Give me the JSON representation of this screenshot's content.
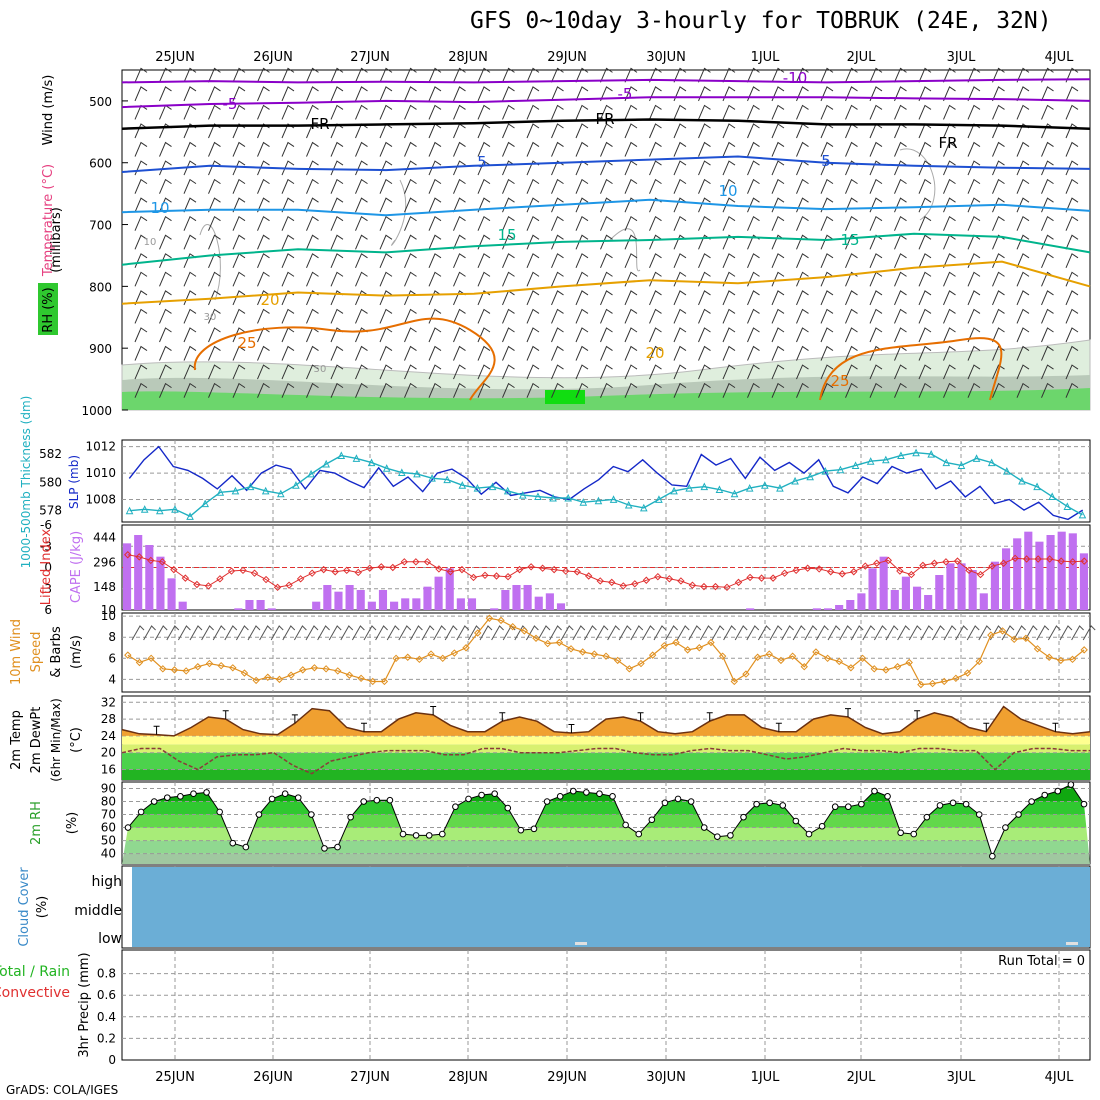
{
  "title": "GFS 0~10day 3-hourly for TOBRUK (24E, 32N)",
  "footer": "GrADS: COLA/IGES",
  "run_total": "Run Total = 0",
  "colors": {
    "purple": "#8a00c8",
    "black": "#000000",
    "blue": "#1e50d2",
    "lightblue": "#1e96e6",
    "teal": "#00b48c",
    "orange": "#e6a000",
    "darkorange": "#e66e00",
    "rh_green": "#3cc83c",
    "cyan": "#20b0c0",
    "slp_blue": "#1428c8",
    "cape": "#c070f0",
    "li": "#e03030",
    "wind10": "#e09020",
    "cloud": "#6baed6",
    "temp_fill": "#f0a030",
    "temp_top": "#e06000"
  },
  "chart_data": [
    {
      "type": "contour",
      "panel": "upper-air",
      "dates": [
        "25JUN",
        "26JUN",
        "27JUN",
        "28JUN",
        "29JUN",
        "30JUN",
        "1JUL",
        "2JUL",
        "3JUL",
        "4JUL"
      ],
      "ylabel": "(millibars)",
      "side_labels": [
        "Wind (m/s)",
        "Temperature (°C)",
        "RH (%)"
      ],
      "y_ticks": [
        "500",
        "600",
        "700",
        "800",
        "900",
        "1000"
      ],
      "ylim": [
        1000,
        450
      ],
      "temperature_lines": [
        {
          "name": "-10",
          "color": "purple",
          "p": [
            470,
            468,
            470,
            469,
            470,
            468,
            466,
            468,
            470,
            468,
            466,
            465
          ]
        },
        {
          "name": "-5",
          "color": "purple",
          "p": [
            510,
            505,
            503,
            500,
            502,
            498,
            494,
            494,
            494,
            496,
            497,
            500
          ]
        },
        {
          "name": "FR",
          "color": "black",
          "p": [
            545,
            540,
            540,
            538,
            536,
            532,
            530,
            532,
            538,
            538,
            540,
            545
          ]
        },
        {
          "name": "5",
          "color": "blue",
          "p": [
            615,
            605,
            610,
            612,
            605,
            600,
            595,
            590,
            600,
            605,
            608,
            610
          ]
        },
        {
          "name": "10",
          "color": "lightblue",
          "p": [
            680,
            676,
            676,
            685,
            676,
            668,
            660,
            670,
            675,
            672,
            668,
            678
          ]
        },
        {
          "name": "15",
          "color": "teal",
          "p": [
            765,
            750,
            740,
            745,
            735,
            728,
            725,
            720,
            725,
            715,
            720,
            745
          ]
        },
        {
          "name": "20",
          "color": "orange",
          "p": [
            828,
            820,
            810,
            815,
            812,
            800,
            790,
            795,
            785,
            770,
            760,
            800
          ]
        }
      ],
      "labels": [
        {
          "text": "-5",
          "value": -5
        },
        {
          "text": "-5",
          "value": -5
        },
        {
          "text": "-10",
          "value": -10
        },
        {
          "text": "FR",
          "value": 0
        },
        {
          "text": "FR",
          "value": 0
        },
        {
          "text": "FR",
          "value": 0
        },
        {
          "text": "5",
          "value": 5
        },
        {
          "text": "5",
          "value": 5
        },
        {
          "text": "10",
          "value": 10
        },
        {
          "text": "10",
          "value": 10
        },
        {
          "text": "15",
          "value": 15
        },
        {
          "text": "15",
          "value": 15
        },
        {
          "text": "20",
          "value": 20
        },
        {
          "text": "20",
          "value": 20
        },
        {
          "text": "25",
          "value": 25
        },
        {
          "text": "25",
          "value": 25
        },
        {
          "text": "10",
          "value": 10
        },
        {
          "text": "30",
          "value": 30
        },
        {
          "text": "50",
          "value": 50
        }
      ]
    },
    {
      "type": "line",
      "panel": "slp-thickness",
      "left_axis_label": "1000-500mb Thickness (dm)",
      "right_axis_label": "SLP (mb)",
      "left_ticks": [
        "582",
        "580",
        "578"
      ],
      "right_ticks": [
        "1012",
        "1010",
        "1008"
      ],
      "series": [
        {
          "name": "SLP (mb)",
          "color": "slp_blue",
          "marker": "none",
          "values": [
            1009.6,
            1011.0,
            1012.0,
            1010.5,
            1010.2,
            1009.6,
            1008.8,
            1009.8,
            1008.7,
            1010.0,
            1010.6,
            1010.3,
            1008.8,
            1010.2,
            1010.0,
            1009.4,
            1008.9,
            1010.4,
            1009.0,
            1009.7,
            1008.6,
            1010.0,
            1010.3,
            1009.6,
            1008.4,
            1009.3,
            1008.3,
            1008.5,
            1008.7,
            1008.2,
            1008.0,
            1008.8,
            1009.5,
            1010.5,
            1010.1,
            1011.0,
            1010.0,
            1009.1,
            1009.0,
            1011.4,
            1010.6,
            1011.1,
            1009.6,
            1011.2,
            1010.2,
            1010.8,
            1010.0,
            1011.0,
            1009.0,
            1008.5,
            1009.7,
            1009.2,
            1010.5,
            1010.0,
            1010.3,
            1008.8,
            1009.4,
            1008.2,
            1009.0,
            1007.7,
            1008.0,
            1007.2,
            1007.8,
            1006.8,
            1006.5,
            1007.2
          ]
        },
        {
          "name": "1000-500mb Thickness (dm)",
          "color": "cyan",
          "marker": "triangle",
          "values": [
            578.0,
            578.1,
            578.0,
            578.1,
            577.6,
            578.5,
            579.3,
            579.4,
            579.7,
            579.4,
            579.2,
            579.8,
            580.6,
            581.3,
            581.9,
            581.7,
            581.4,
            581.0,
            580.7,
            580.6,
            580.3,
            580.2,
            579.8,
            579.6,
            579.7,
            579.4,
            579.1,
            579.0,
            578.9,
            578.9,
            578.6,
            578.7,
            578.8,
            578.4,
            578.2,
            578.8,
            579.4,
            579.6,
            579.7,
            579.5,
            579.2,
            579.6,
            579.8,
            579.6,
            580.1,
            580.4,
            580.8,
            580.9,
            581.2,
            581.5,
            581.6,
            581.9,
            582.1,
            582.0,
            581.4,
            581.2,
            581.7,
            581.4,
            580.8,
            580.1,
            579.7,
            579.0,
            578.3,
            577.7
          ]
        }
      ]
    },
    {
      "type": "bar",
      "panel": "cape-li",
      "left_axis_label": "Lifted Index",
      "right_axis_label": "CAPE (J/kg)",
      "left_ticks": [
        "-6",
        "-3",
        "0",
        "3",
        "6"
      ],
      "right_ticks": [
        "444",
        "296",
        "148",
        "10"
      ],
      "series": [
        {
          "name": "CAPE (J/kg)",
          "color": "cape",
          "values": [
            410,
            460,
            400,
            330,
            200,
            60,
            0,
            0,
            0,
            0,
            20,
            70,
            70,
            20,
            0,
            0,
            0,
            60,
            160,
            120,
            160,
            130,
            60,
            130,
            60,
            80,
            80,
            150,
            210,
            260,
            80,
            80,
            0,
            20,
            130,
            160,
            160,
            90,
            110,
            50,
            0,
            0,
            0,
            0,
            0,
            0,
            0,
            0,
            0,
            0,
            0,
            0,
            0,
            0,
            0,
            0,
            20,
            0,
            0,
            0,
            0,
            0,
            20,
            20,
            40,
            70,
            110,
            260,
            330,
            130,
            210,
            150,
            100,
            220,
            290,
            290,
            250,
            110,
            300,
            380,
            440,
            480,
            420,
            460,
            480,
            470,
            350
          ]
        },
        {
          "name": "Lifted Index",
          "color": "li",
          "marker": "diamond",
          "values": [
            -1.8,
            -1.5,
            -1.0,
            -0.8,
            0.3,
            1.5,
            2.4,
            2.6,
            1.6,
            0.5,
            0.4,
            0.8,
            1.7,
            2.8,
            2.5,
            1.6,
            0.8,
            0.3,
            0.6,
            0.4,
            0.7,
            0.1,
            -0.1,
            0.0,
            -0.8,
            -0.8,
            -0.8,
            0.2,
            0.6,
            0.3,
            1.4,
            1.1,
            1.2,
            1.3,
            0.3,
            -0.1,
            0.1,
            0.3,
            0.5,
            0.6,
            1.2,
            1.9,
            2.1,
            2.6,
            2.3,
            1.8,
            1.3,
            1.6,
            1.9,
            2.5,
            2.7,
            2.7,
            2.8,
            2.1,
            1.4,
            1.5,
            1.5,
            0.8,
            0.4,
            0.1,
            0.2,
            0.6,
            0.9,
            0.6,
            -0.2,
            -0.6,
            -1.0,
            0.5,
            1.0,
            -0.3,
            -0.6,
            -0.8,
            -0.9,
            0.4,
            1.0,
            -0.2,
            -0.6,
            -1.3,
            -1.2,
            -1.2,
            -1.2,
            -0.9,
            -0.8,
            -0.9
          ]
        }
      ]
    },
    {
      "type": "line",
      "panel": "wind10m",
      "left_axis_label": "10m Wind Speed & Barbs (m/s)",
      "left_ticks": [
        "10",
        "8",
        "6",
        "4"
      ],
      "series": [
        {
          "name": "10m Wind Speed",
          "color": "wind10",
          "marker": "diamond",
          "values": [
            6.3,
            5.6,
            6.0,
            5.0,
            4.9,
            4.8,
            5.2,
            5.5,
            5.3,
            5.1,
            4.6,
            3.9,
            4.2,
            4.0,
            4.4,
            4.9,
            5.1,
            5.0,
            4.8,
            4.4,
            4.1,
            3.8,
            3.8,
            6.0,
            6.1,
            5.9,
            6.4,
            6.0,
            6.5,
            7.0,
            8.4,
            9.8,
            9.6,
            9.0,
            8.6,
            7.9,
            7.4,
            7.5,
            6.9,
            6.6,
            6.4,
            6.2,
            5.8,
            5.0,
            5.5,
            6.3,
            7.2,
            7.5,
            6.8,
            7.0,
            7.5,
            6.2,
            3.8,
            4.5,
            6.1,
            6.4,
            5.8,
            6.2,
            5.2,
            6.6,
            6.0,
            5.7,
            5.1,
            6.0,
            5.0,
            4.9,
            5.2,
            5.6,
            3.5,
            3.6,
            3.8,
            4.1,
            4.6,
            5.7,
            8.2,
            8.6,
            7.8,
            7.9,
            6.9,
            6.1,
            5.8,
            5.9,
            6.8
          ]
        }
      ]
    },
    {
      "type": "area",
      "panel": "temp-dewpoint",
      "left_axis_label": "2m Temp 2m DewPt (6hr Min/Max)",
      "right_axis_label": "(°C)",
      "left_ticks": [
        "32",
        "28",
        "24",
        "20",
        "16"
      ],
      "series": [
        {
          "name": "2m Temp",
          "color": "temp_top",
          "values": [
            25.5,
            24.5,
            24.3,
            24.0,
            26.0,
            28.5,
            28.0,
            25.5,
            24.5,
            24.3,
            27.0,
            30.5,
            30.0,
            26.0,
            25.0,
            25.0,
            28.0,
            29.5,
            29.0,
            26.5,
            25.0,
            25.0,
            27.5,
            28.5,
            27.5,
            25.0,
            24.7,
            25.0,
            28.0,
            28.5,
            27.5,
            25.0,
            24.5,
            25.0,
            27.5,
            29.0,
            29.0,
            26.0,
            25.0,
            25.0,
            28.0,
            29.0,
            28.5,
            26.0,
            24.5,
            25.0,
            28.0,
            29.5,
            28.5,
            26.0,
            25.0,
            31.0,
            28.0,
            26.5,
            25.0,
            24.5,
            25.0
          ]
        },
        {
          "name": "2m DewPt",
          "color": "temp_top",
          "dashed": true,
          "values": [
            20.0,
            21.0,
            21.0,
            18.0,
            16.0,
            19.0,
            19.5,
            19.5,
            20.0,
            17.0,
            15.0,
            18.0,
            19.0,
            20.0,
            20.5,
            20.5,
            20.5,
            19.5,
            19.5,
            21.0,
            21.0,
            20.0,
            20.0,
            20.0,
            20.5,
            21.0,
            21.0,
            20.0,
            19.5,
            19.5,
            20.5,
            21.0,
            20.5,
            20.5,
            19.5,
            18.5,
            19.0,
            20.0,
            21.0,
            20.5,
            20.5,
            20.0,
            21.0,
            21.0,
            20.5,
            20.5,
            16.0,
            20.0,
            21.0,
            21.0,
            20.5,
            20.5
          ]
        }
      ]
    },
    {
      "type": "area",
      "panel": "rh2m",
      "left_axis_label": "2m RH (%)",
      "left_ticks": [
        "90",
        "80",
        "70",
        "60",
        "50",
        "40"
      ],
      "series": [
        {
          "name": "2m RH",
          "color": "rh_green",
          "marker": "circle",
          "values": [
            60,
            72,
            80,
            83,
            84,
            86,
            87,
            72,
            48,
            45,
            70,
            82,
            86,
            83,
            70,
            44,
            45,
            68,
            80,
            81,
            81,
            55,
            54,
            54,
            55,
            76,
            82,
            85,
            86,
            75,
            58,
            59,
            80,
            84,
            88,
            87,
            86,
            84,
            62,
            55,
            66,
            79,
            82,
            80,
            60,
            53,
            54,
            68,
            78,
            79,
            77,
            65,
            55,
            61,
            76,
            76,
            78,
            88,
            84,
            56,
            55,
            68,
            77,
            79,
            78,
            70,
            38,
            60,
            70,
            80,
            85,
            88,
            93,
            78
          ]
        }
      ]
    },
    {
      "type": "table",
      "panel": "cloud-cover",
      "left_axis_label": "Cloud Cover (%)",
      "levels": [
        "high",
        "middle",
        "low"
      ]
    },
    {
      "type": "bar",
      "panel": "precip",
      "left_axis_label": "3hr Precip (mm)",
      "side_labels": [
        "Total / Rain",
        "Convective"
      ],
      "left_ticks": [
        "0.8",
        "0.6",
        "0.4",
        "0.2",
        "0"
      ],
      "ylim": [
        0,
        1.0
      ],
      "values": []
    }
  ]
}
